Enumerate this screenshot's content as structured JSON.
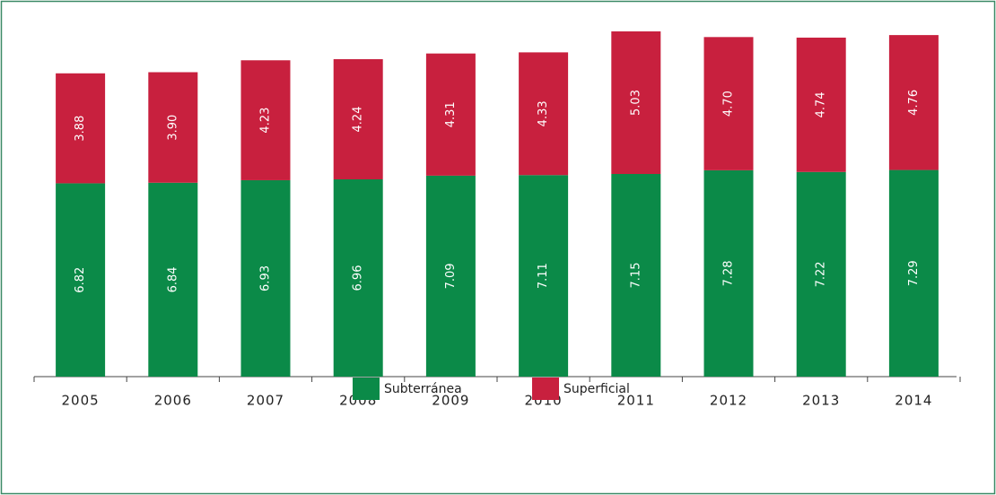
{
  "chart_data": {
    "type": "stacked_bar",
    "categories": [
      "2005",
      "2006",
      "2007",
      "2008",
      "2009",
      "2010",
      "2011",
      "2012",
      "2013",
      "2014"
    ],
    "series": [
      {
        "name": "Subterránea",
        "color": "#0b8a48",
        "values": [
          6.82,
          6.84,
          6.93,
          6.96,
          7.09,
          7.11,
          7.15,
          7.28,
          7.22,
          7.29
        ]
      },
      {
        "name": "Superficial",
        "color": "#c8203e",
        "values": [
          3.88,
          3.9,
          4.23,
          4.24,
          4.31,
          4.33,
          5.03,
          4.7,
          4.74,
          4.76
        ],
        "value_labels": [
          "3.88",
          "3.90",
          "4.23",
          "4.24",
          "4.31",
          "4.33",
          "5.03",
          "4.70",
          "4.74",
          "4.76"
        ]
      }
    ],
    "legend": "bottom"
  }
}
